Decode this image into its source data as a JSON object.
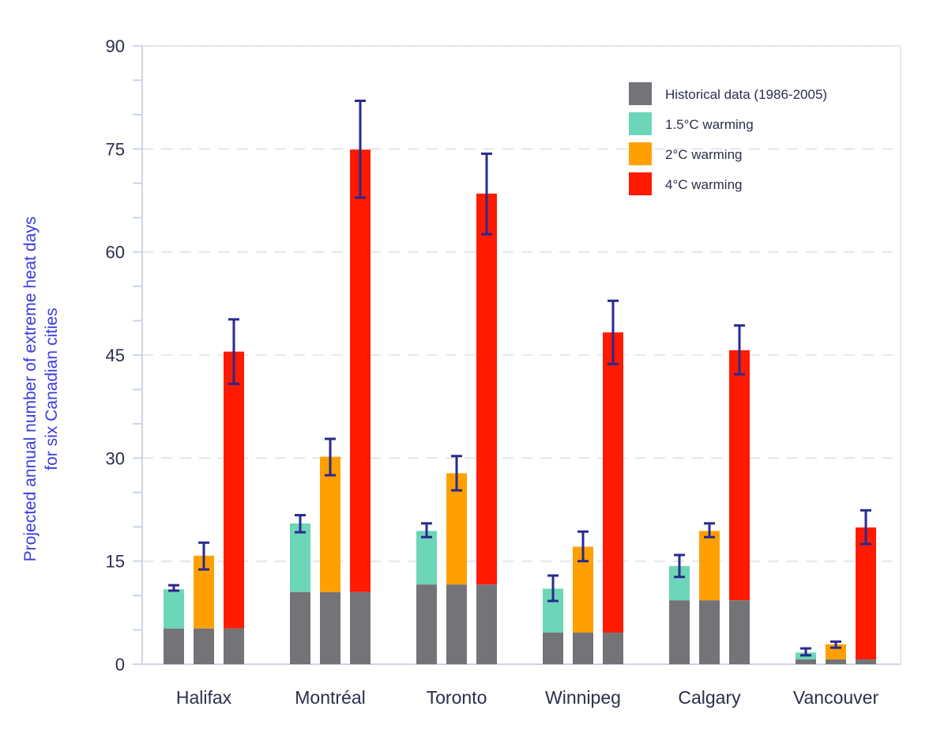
{
  "chart_data": {
    "type": "bar",
    "stacked_on_historical": true,
    "title": "",
    "xlabel": "",
    "ylabel_lines": [
      "Projected annual number of extreme heat days",
      "for six Canadian cities"
    ],
    "ylim": [
      0,
      90
    ],
    "yticks": [
      0,
      15,
      30,
      45,
      60,
      75,
      90
    ],
    "minor_tick_step": 5,
    "grid": "dashed horizontal at major ticks",
    "legend_position": "top-right",
    "categories": [
      "Halifax",
      "Montréal",
      "Toronto",
      "Winnipeg",
      "Calgary",
      "Vancouver"
    ],
    "historical": {
      "name": "Historical data (1986-2005)",
      "color": "#747378",
      "values": [
        5.2,
        10.5,
        11.6,
        4.6,
        9.3,
        0.7
      ]
    },
    "series": [
      {
        "name": "1.5°C warming",
        "color": "#6dd6b8",
        "values": [
          10.9,
          20.5,
          19.4,
          11.0,
          14.3,
          1.7
        ],
        "err_high": [
          11.5,
          21.7,
          20.5,
          12.9,
          15.9,
          2.3
        ],
        "err_low": [
          10.7,
          19.2,
          18.5,
          9.2,
          12.7,
          1.3
        ]
      },
      {
        "name": "2°C warming",
        "color": "#ffa000",
        "values": [
          15.8,
          30.2,
          27.8,
          17.1,
          19.4,
          2.9
        ],
        "err_high": [
          17.7,
          32.8,
          30.3,
          19.3,
          20.5,
          3.3
        ],
        "err_low": [
          13.8,
          27.5,
          25.3,
          15.0,
          18.5,
          2.4
        ]
      },
      {
        "name": "4°C warming",
        "color": "#ff1a00",
        "values": [
          45.5,
          74.9,
          68.5,
          48.3,
          45.7,
          19.9
        ],
        "err_high": [
          50.2,
          82.0,
          74.3,
          52.9,
          49.3,
          22.4
        ],
        "err_low": [
          40.8,
          67.9,
          62.6,
          43.7,
          42.2,
          17.5
        ]
      }
    ],
    "error_bar_color": "#2a2a8c"
  }
}
